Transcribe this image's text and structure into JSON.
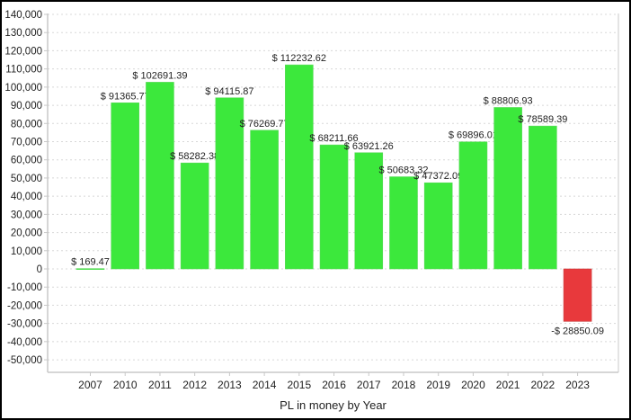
{
  "chart_data": {
    "type": "bar",
    "title": "",
    "xlabel": "PL in money by Year",
    "ylabel": "",
    "categories": [
      "2007",
      "2010",
      "2011",
      "2012",
      "2013",
      "2014",
      "2015",
      "2016",
      "2017",
      "2018",
      "2019",
      "2020",
      "2021",
      "2022",
      "2023"
    ],
    "values": [
      169.47,
      91365.77,
      102691.39,
      58282.38,
      94115.87,
      76269.77,
      112232.62,
      68211.66,
      63921.26,
      50683.32,
      47372.09,
      69896.01,
      88806.93,
      78589.39,
      -28850.09
    ],
    "data_labels": [
      "$ 169.47",
      "$ 91365.77",
      "$ 102691.39",
      "$ 58282.38",
      "$ 94115.87",
      "$ 76269.77",
      "$ 112232.62",
      "$ 68211.66",
      "$ 63921.26",
      "$ 50683.32",
      "$ 47372.09",
      "$ 69896.01",
      "$ 88806.93",
      "$ 78589.39",
      "-$ 28850.09"
    ],
    "y_ticks": [
      140000,
      130000,
      120000,
      110000,
      100000,
      90000,
      80000,
      70000,
      60000,
      50000,
      40000,
      30000,
      20000,
      10000,
      0,
      -10000,
      -20000,
      -30000,
      -40000,
      -50000
    ],
    "y_tick_labels": [
      "140,000",
      "130,000",
      "120,000",
      "110,000",
      "100,000",
      "90,000",
      "80,000",
      "70,000",
      "60,000",
      "50,000",
      "40,000",
      "30,000",
      "20,000",
      "10,000",
      "0",
      "-10,000",
      "-20,000",
      "-30,000",
      "-40,000",
      "-50,000"
    ],
    "ylim": [
      -57000,
      140500
    ],
    "grid": true,
    "colors": {
      "positive": "#3ce83c",
      "negative": "#e8393c",
      "grid": "#d8d8d8",
      "axis": "#c8c8c8"
    }
  }
}
